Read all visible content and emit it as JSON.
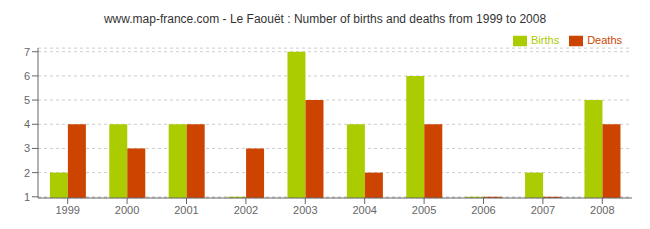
{
  "chart_data": {
    "type": "bar",
    "title": "www.map-france.com - Le Faouët : Number of births and deaths from 1999 to 2008",
    "categories": [
      "1999",
      "2000",
      "2001",
      "2002",
      "2003",
      "2004",
      "2005",
      "2006",
      "2007",
      "2008"
    ],
    "series": [
      {
        "name": "Births",
        "color": "#aacc00",
        "values": [
          2,
          4,
          4,
          1,
          7,
          4,
          6,
          1,
          2,
          5
        ]
      },
      {
        "name": "Deaths",
        "color": "#cc4400",
        "values": [
          4,
          3,
          4,
          3,
          5,
          2,
          4,
          1,
          1,
          4
        ]
      }
    ],
    "ylim": [
      0.95,
      7.15
    ],
    "yticks": [
      1,
      2,
      3,
      4,
      5,
      6,
      7
    ],
    "grid": true,
    "legend": "upper right"
  }
}
